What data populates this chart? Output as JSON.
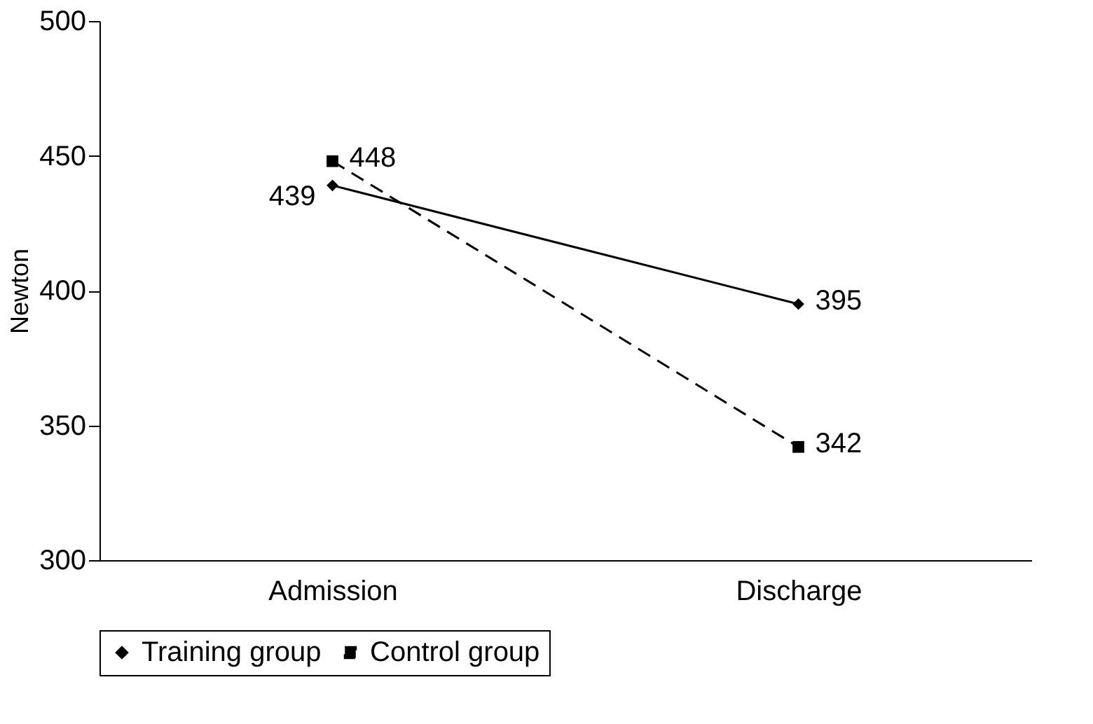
{
  "chart_data": {
    "type": "line",
    "ylabel": "Newton",
    "categories": [
      "Admission",
      "Discharge"
    ],
    "series": [
      {
        "name": "Training group",
        "color": "#000000",
        "values": [
          439,
          395
        ],
        "marker": "diamond",
        "line_style": "solid"
      },
      {
        "name": "Control group",
        "color": "#000000",
        "values": [
          448,
          342
        ],
        "marker": "square",
        "line_style": "dashed"
      }
    ],
    "ylim": [
      300,
      500
    ],
    "yticks": [
      300,
      350,
      400,
      450,
      500
    ],
    "data_labels": true,
    "grid": false,
    "legend": "bottom"
  }
}
